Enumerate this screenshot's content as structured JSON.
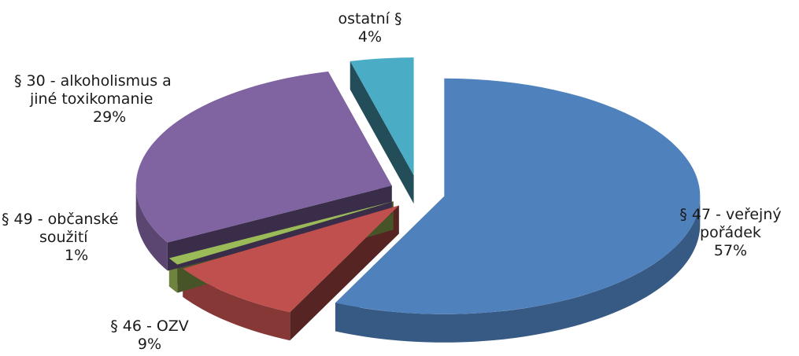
{
  "chart_data": {
    "type": "pie",
    "style": "3d-exploded",
    "title": "",
    "slices": [
      {
        "label_lines": [
          "§ 47 - veřejný",
          "pořádek"
        ],
        "percent_label": "57%",
        "value": 57,
        "color": "#4f81bd"
      },
      {
        "label_lines": [
          "§ 46 - OZV"
        ],
        "percent_label": "9%",
        "value": 9,
        "color": "#c0504d"
      },
      {
        "label_lines": [
          "§ 49 - občanské",
          "soužití"
        ],
        "percent_label": "1%",
        "value": 1,
        "color": "#9bbb59"
      },
      {
        "label_lines": [
          "§ 30 - alkoholismus a",
          "jiné toxikomanie"
        ],
        "percent_label": "29%",
        "value": 29,
        "color": "#8064a2"
      },
      {
        "label_lines": [
          "ostatní §"
        ],
        "percent_label": "4%",
        "value": 4,
        "color": "#4bacc6"
      }
    ]
  }
}
